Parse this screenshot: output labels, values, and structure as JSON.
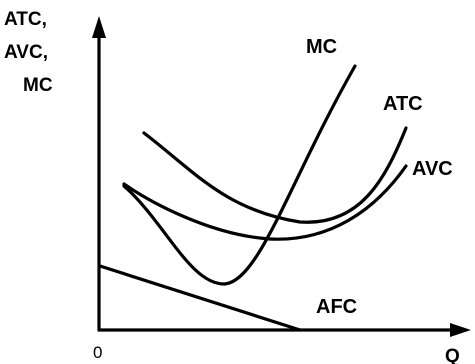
{
  "axes": {
    "y_label_lines": [
      "ATC,",
      "AVC,",
      "MC"
    ],
    "x_label": "Q",
    "origin_label": "0"
  },
  "curves": {
    "mc_label": "MC",
    "atc_label": "ATC",
    "avc_label": "AVC",
    "afc_label": "AFC"
  },
  "colors": {
    "ink": "#000000",
    "background": "#ffffff"
  }
}
